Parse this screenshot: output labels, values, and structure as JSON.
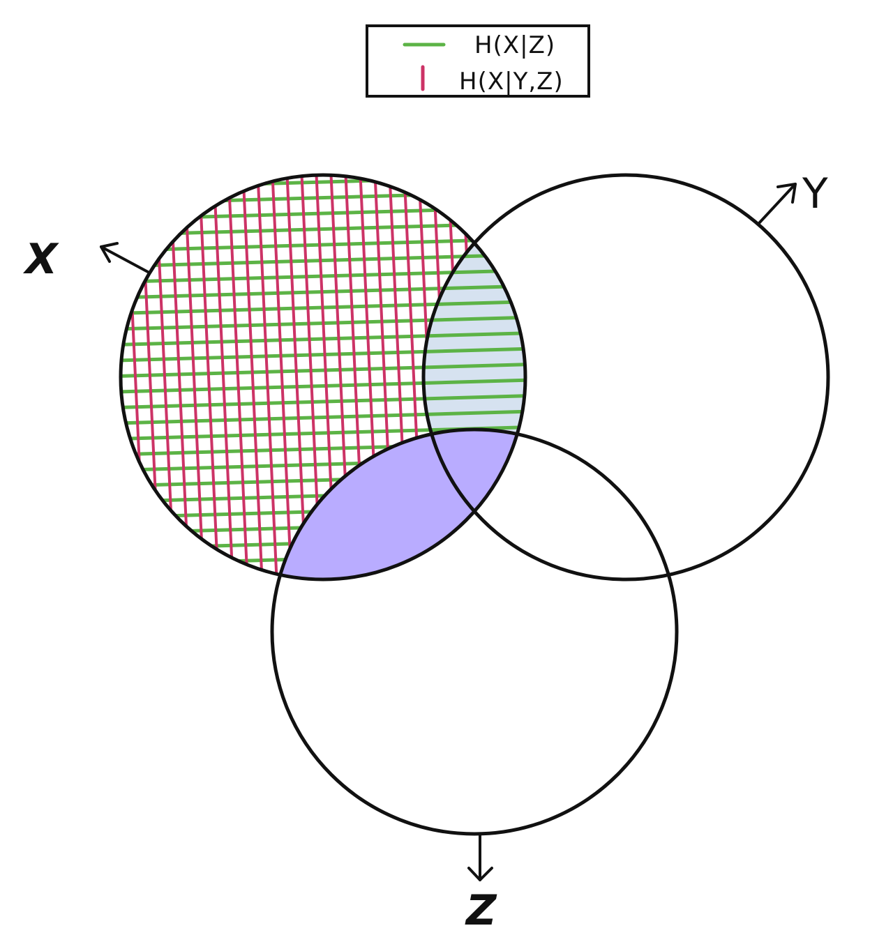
{
  "legend": {
    "items": [
      {
        "label": "H(X|Z)",
        "color": "#5cb346",
        "mark": "horizontal-line"
      },
      {
        "label": "H(X|Y,Z)",
        "color": "#cc3366",
        "mark": "vertical-line"
      }
    ]
  },
  "sets": [
    {
      "id": "X",
      "label": "X"
    },
    {
      "id": "Y",
      "label": "Y"
    },
    {
      "id": "Z",
      "label": "Z"
    }
  ],
  "colors": {
    "outline": "#111111",
    "green_hatch": "#5cb346",
    "pink_hatch": "#cc3366",
    "xy_only_fill": "#d6e2f0",
    "xz_fill": "#b9acff",
    "xyz_fill": "#b3a9f0"
  },
  "regions": {
    "green_hatch": "X only and X∩Y outside Z",
    "pink_hatch": "X only",
    "purple_fill": "X∩Z"
  }
}
